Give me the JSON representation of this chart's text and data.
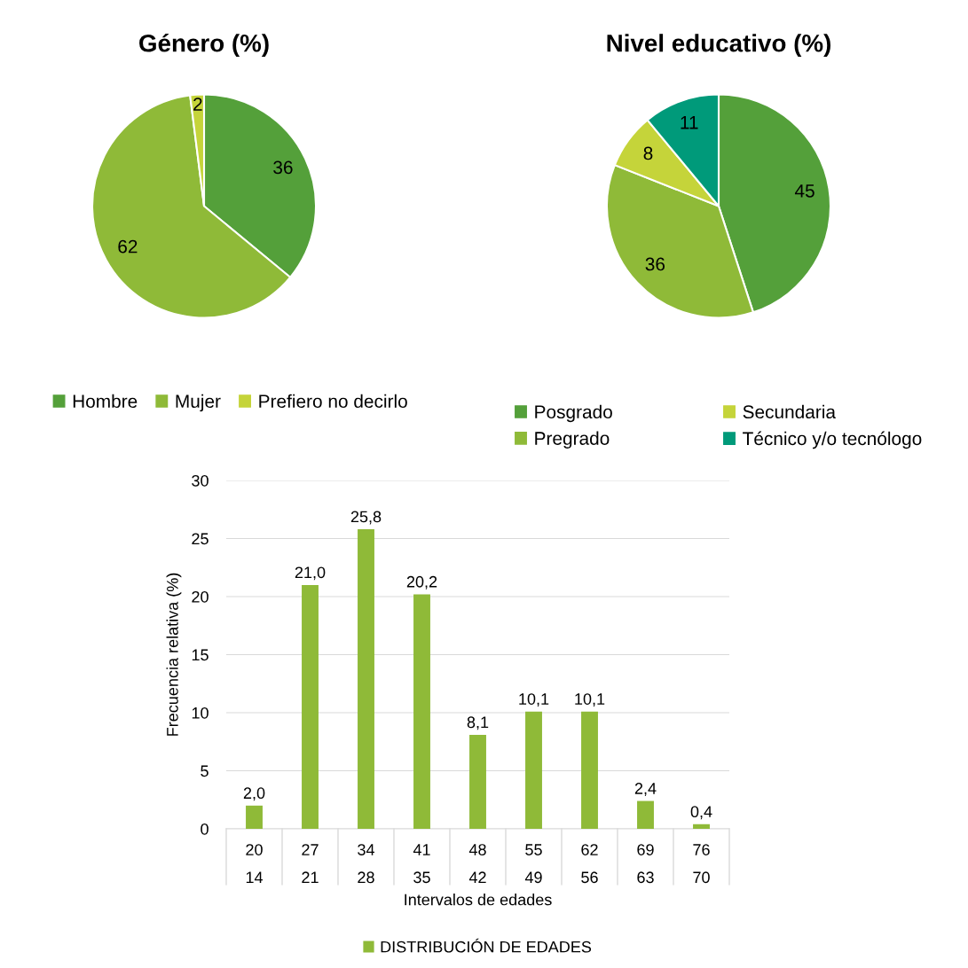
{
  "chart_data": [
    {
      "type": "pie",
      "title": "Género (%)",
      "categories": [
        "Hombre",
        "Mujer",
        "Prefiero no decirlo"
      ],
      "values": [
        36,
        62,
        2
      ],
      "colors": [
        "#54a03a",
        "#8fba38",
        "#c5d43a"
      ],
      "data_labels": true,
      "legend": "bottom"
    },
    {
      "type": "pie",
      "title": "Nivel educativo (%)",
      "categories": [
        "Posgrado",
        "Pregrado",
        "Secundaria",
        "Técnico y/o tecnólogo"
      ],
      "values": [
        45,
        36,
        8,
        11
      ],
      "colors": [
        "#54a03a",
        "#8fba38",
        "#c5d43a",
        "#009a7a"
      ],
      "data_labels": true,
      "legend": "bottom"
    },
    {
      "type": "bar",
      "categories": [
        "20\n14",
        "27\n21",
        "34\n28",
        "41\n35",
        "48\n42",
        "55\n49",
        "62\n56",
        "69\n63",
        "76\n70"
      ],
      "series": [
        {
          "name": "DISTRIBUCIÓN DE EDADES",
          "color": "#8fba38",
          "values": [
            2.0,
            21.0,
            25.8,
            20.2,
            8.1,
            10.1,
            10.1,
            2.4,
            0.4
          ]
        }
      ],
      "value_labels": [
        "2,0",
        "21,0",
        "25,8",
        "20,2",
        "8,1",
        "10,1",
        "10,1",
        "2,4",
        "0,4"
      ],
      "xlabel": "Intervalos de edades",
      "ylabel": "Frecuencia relativa (%)",
      "ylim": [
        0,
        30
      ],
      "yticks": [
        0,
        5,
        10,
        15,
        20,
        25,
        30
      ],
      "grid": "y",
      "legend": "bottom"
    }
  ]
}
